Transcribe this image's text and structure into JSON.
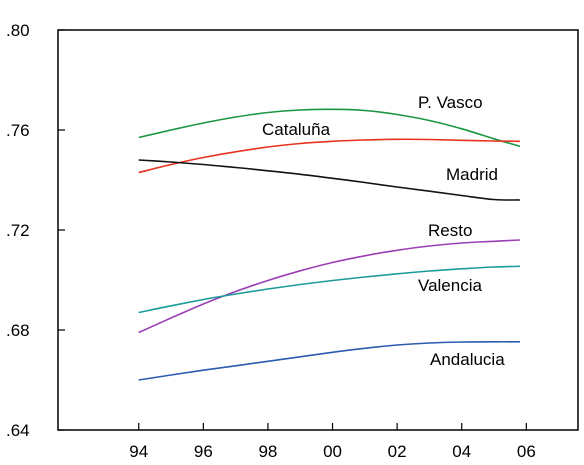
{
  "chart_data": {
    "type": "line",
    "title": "",
    "xlabel": "",
    "ylabel": "",
    "x": [
      1994,
      1995,
      1996,
      1997,
      1998,
      1999,
      2000,
      2001,
      2002,
      2003,
      2004,
      2005,
      2005.8
    ],
    "xlim": [
      1991.5,
      2007.6
    ],
    "ylim": [
      0.64,
      0.8
    ],
    "x_ticks": [
      {
        "value": 1994,
        "label": "94"
      },
      {
        "value": 1996,
        "label": "96"
      },
      {
        "value": 1998,
        "label": "98"
      },
      {
        "value": 2000,
        "label": "00"
      },
      {
        "value": 2002,
        "label": "02"
      },
      {
        "value": 2004,
        "label": "04"
      },
      {
        "value": 2006,
        "label": "06"
      }
    ],
    "y_ticks": [
      {
        "value": 0.64,
        "label": ".64"
      },
      {
        "value": 0.68,
        "label": ".68"
      },
      {
        "value": 0.72,
        "label": ".72"
      },
      {
        "value": 0.76,
        "label": ".76"
      },
      {
        "value": 0.8,
        "label": ".80"
      }
    ],
    "grid": false,
    "legend": "inline labels",
    "series": [
      {
        "name": "P. Vasco",
        "color": "#1a9641",
        "values": [
          0.757,
          0.76,
          0.7628,
          0.7652,
          0.767,
          0.768,
          0.7683,
          0.7678,
          0.7662,
          0.7638,
          0.7605,
          0.7565,
          0.7535
        ]
      },
      {
        "name": "Cataluña",
        "color": "#e8321e",
        "values": [
          0.743,
          0.7462,
          0.749,
          0.7513,
          0.7532,
          0.7546,
          0.7555,
          0.756,
          0.7563,
          0.7562,
          0.7559,
          0.7556,
          0.7555
        ]
      },
      {
        "name": "Madrid",
        "color": "#111111",
        "values": [
          0.748,
          0.7472,
          0.7462,
          0.745,
          0.7437,
          0.7423,
          0.7407,
          0.739,
          0.7372,
          0.7355,
          0.7338,
          0.7322,
          0.732
        ]
      },
      {
        "name": "Resto",
        "color": "#9b3fb5",
        "values": [
          0.679,
          0.6848,
          0.6904,
          0.6954,
          0.6998,
          0.7037,
          0.707,
          0.7097,
          0.7119,
          0.7136,
          0.7148,
          0.7155,
          0.716
        ]
      },
      {
        "name": "Valencia",
        "color": "#1b9a9a",
        "values": [
          0.687,
          0.6897,
          0.6922,
          0.6944,
          0.6964,
          0.6982,
          0.6998,
          0.7012,
          0.7025,
          0.7036,
          0.7045,
          0.7052,
          0.7055
        ]
      },
      {
        "name": "Andalucia",
        "color": "#2b5bb0",
        "values": [
          0.66,
          0.662,
          0.6639,
          0.6657,
          0.6675,
          0.6693,
          0.6711,
          0.6727,
          0.674,
          0.6748,
          0.6752,
          0.6753,
          0.6753
        ]
      }
    ]
  }
}
